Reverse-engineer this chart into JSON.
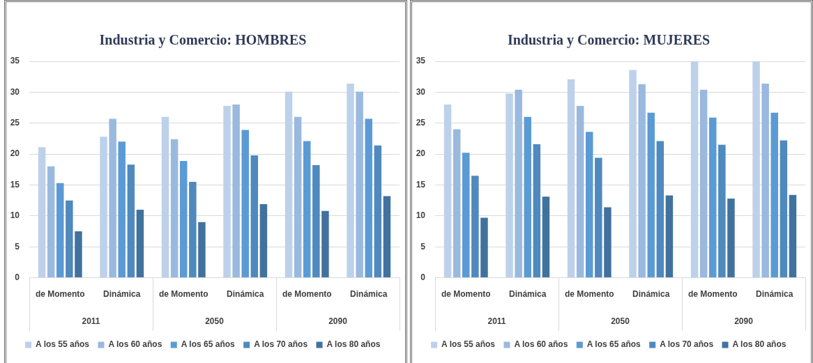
{
  "chart_data": [
    {
      "type": "bar",
      "title": "Industria y Comercio: HOMBRES",
      "categories": [
        "de Momento",
        "Dinámica",
        "de Momento",
        "Dinámica",
        "de Momento",
        "Dinámica"
      ],
      "annotations": [
        "2011",
        "2050",
        "2090"
      ],
      "series": [
        {
          "name": "A los 55 años",
          "color": "#bdd1ea",
          "values": [
            21.1,
            22.8,
            26.0,
            27.8,
            30.1,
            31.4
          ]
        },
        {
          "name": "A los 60 años",
          "color": "#9ab9df",
          "values": [
            18.0,
            25.7,
            22.4,
            28.0,
            26.0,
            30.1
          ]
        },
        {
          "name": "A los 65 años",
          "color": "#5b9bd5",
          "values": [
            15.3,
            22.0,
            18.9,
            23.9,
            22.1,
            25.7
          ]
        },
        {
          "name": "A los 70 años",
          "color": "#4f89bd",
          "values": [
            12.5,
            18.3,
            15.5,
            19.8,
            18.2,
            21.4
          ]
        },
        {
          "name": "A los 80 años",
          "color": "#41729e",
          "values": [
            7.5,
            11.0,
            9.0,
            11.9,
            10.8,
            13.2
          ]
        }
      ],
      "ylim": [
        0,
        35
      ],
      "yticks": [
        0,
        5,
        10,
        15,
        20,
        25,
        30,
        35
      ],
      "grid": "y",
      "legend": "bottom"
    },
    {
      "type": "bar",
      "title": "Industria y Comercio: MUJERES",
      "categories": [
        "de Momento",
        "Dinámica",
        "de Momento",
        "Dinámica",
        "de Momento",
        "Dinámica"
      ],
      "annotations": [
        "2011",
        "2050",
        "2090"
      ],
      "series": [
        {
          "name": "A los 55 años",
          "color": "#bdd1ea",
          "values": [
            28.0,
            29.8,
            32.1,
            33.6,
            35,
            35
          ]
        },
        {
          "name": "A los 60 años",
          "color": "#9ab9df",
          "values": [
            24.0,
            30.4,
            27.8,
            31.3,
            30.4,
            31.4
          ]
        },
        {
          "name": "A los 65 años",
          "color": "#5b9bd5",
          "values": [
            20.2,
            26.0,
            23.6,
            26.7,
            25.9,
            26.7
          ]
        },
        {
          "name": "A los 70 años",
          "color": "#4f89bd",
          "values": [
            16.5,
            21.6,
            19.4,
            22.1,
            21.5,
            22.2
          ]
        },
        {
          "name": "A los 80 años",
          "color": "#41729e",
          "values": [
            9.7,
            13.1,
            11.4,
            13.3,
            12.8,
            13.4
          ]
        }
      ],
      "ylim": [
        0,
        35
      ],
      "yticks": [
        0,
        5,
        10,
        15,
        20,
        25,
        30,
        35
      ],
      "grid": "y",
      "legend": "bottom"
    }
  ]
}
